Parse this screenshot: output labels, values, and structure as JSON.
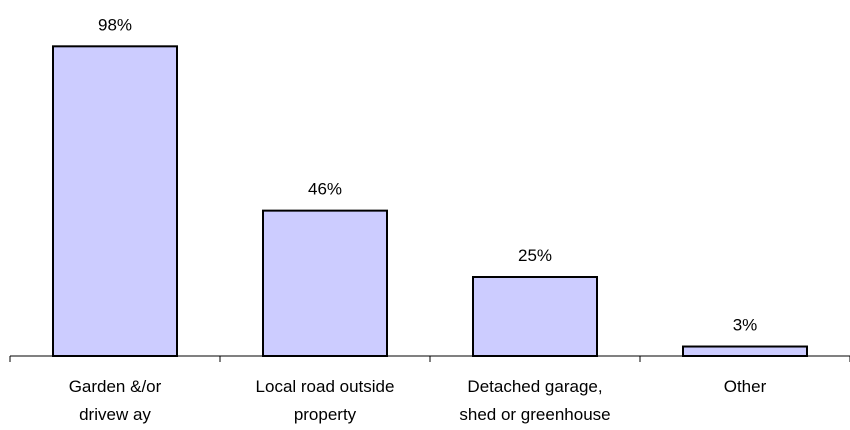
{
  "chart_data": {
    "type": "bar",
    "categories": [
      [
        "Garden &/or",
        "drivew ay"
      ],
      [
        "Local road outside",
        "property"
      ],
      [
        "Detached garage,",
        "shed or greenhouse"
      ],
      [
        "Other"
      ]
    ],
    "values": [
      98,
      46,
      25,
      3
    ],
    "data_labels": [
      "98%",
      "46%",
      "25%",
      "3%"
    ],
    "ylim": [
      0,
      100
    ],
    "grid": false,
    "legend": "none",
    "colors": {
      "bar_fill": "#ccccff",
      "bar_stroke": "#000000"
    }
  }
}
